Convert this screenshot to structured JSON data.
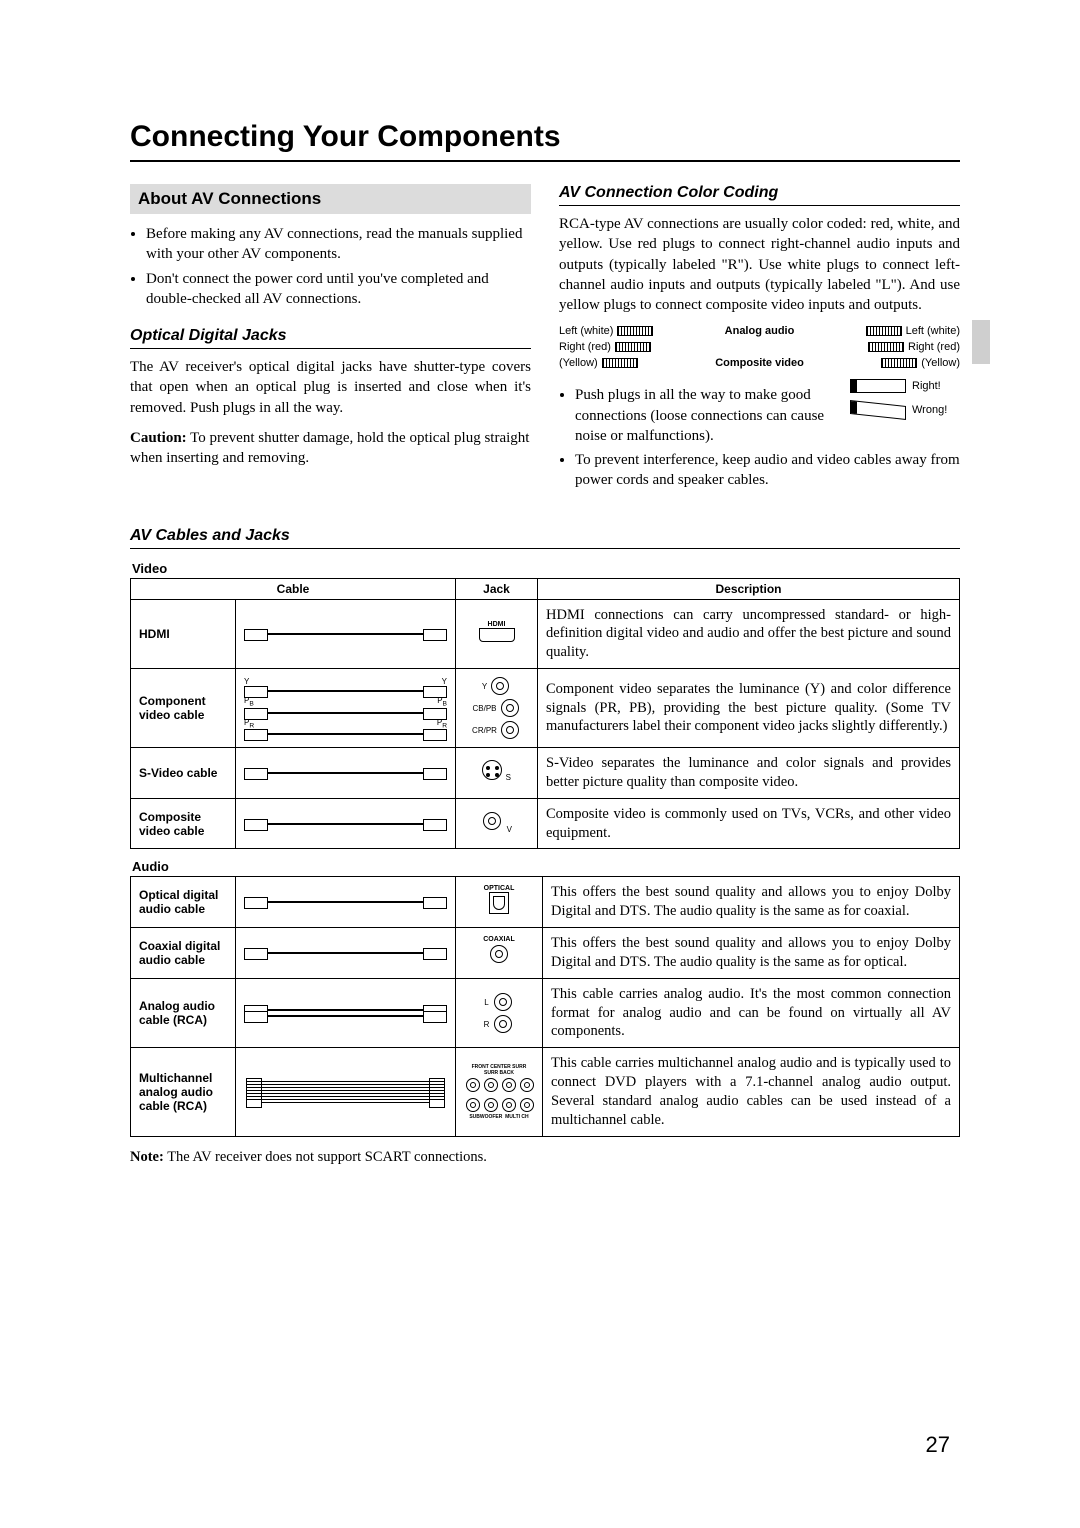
{
  "page": {
    "title": "Connecting Your Components",
    "number": "27"
  },
  "about": {
    "heading": "About AV Connections",
    "bullets": [
      "Before making any AV connections, read the manuals supplied with your other AV components.",
      "Don't connect the power cord until you've completed and double-checked all AV connections."
    ]
  },
  "optical": {
    "heading": "Optical Digital Jacks",
    "body": "The AV receiver's optical digital jacks have shutter-type covers that open when an optical plug is inserted and close when it's removed. Push plugs in all the way.",
    "caution_label": "Caution:",
    "caution_body": " To prevent shutter damage, hold the optical plug straight when inserting and removing."
  },
  "colorcoding": {
    "heading": "AV Connection Color Coding",
    "body": "RCA-type AV connections are usually color coded: red, white, and yellow. Use red plugs to connect right-channel audio inputs and outputs (typically labeled \"R\"). Use white plugs to connect left-channel audio inputs and outputs (typically labeled \"L\"). And use yellow plugs to connect composite video inputs and outputs.",
    "diag": {
      "analog_label": "Analog audio",
      "composite_label": "Composite video",
      "left_white": "Left (white)",
      "right_red": "Right (red)",
      "yellow": "(Yellow)"
    },
    "bullets": [
      "Push plugs in all the way to make good connections (loose connections can cause noise or malfunctions).",
      "To prevent interference, keep audio and video cables away from power cords and speaker cables."
    ],
    "right_label": "Right!",
    "wrong_label": "Wrong!"
  },
  "cables": {
    "heading": "AV Cables and Jacks",
    "video_label": "Video",
    "audio_label": "Audio",
    "columns": {
      "cable": "Cable",
      "jack": "Jack",
      "desc": "Description"
    },
    "video_rows": [
      {
        "name": "HDMI",
        "jack_label": "HDMI",
        "desc": "HDMI connections can carry uncompressed standard- or high-definition digital video and audio and offer the best picture and sound quality."
      },
      {
        "name": "Component video cable",
        "jack_label": "Y / CB/PB / CR/PR",
        "desc": "Component video separates the luminance (Y) and color difference signals (PR, PB), providing the best picture quality. (Some TV manufacturers label their component video jacks slightly differently.)"
      },
      {
        "name": "S-Video cable",
        "jack_label": "S",
        "desc": "S-Video separates the luminance and color signals and provides better picture quality than composite video."
      },
      {
        "name": "Composite video cable",
        "jack_label": "V",
        "desc": "Composite video is commonly used on TVs, VCRs, and other video equipment."
      }
    ],
    "audio_rows": [
      {
        "name": "Optical digital audio cable",
        "jack_label": "OPTICAL",
        "desc": "This offers the best sound quality and allows you to enjoy Dolby Digital and DTS. The audio quality is the same as for coaxial."
      },
      {
        "name": "Coaxial digital audio cable",
        "jack_label": "COAXIAL",
        "desc": "This offers the best sound quality and allows you to enjoy Dolby Digital and DTS. The audio quality is the same as for optical."
      },
      {
        "name": "Analog audio cable (RCA)",
        "jack_label": "L / R",
        "desc": "This cable carries analog audio. It's the most common connection format for analog audio and can be found on virtually all AV components."
      },
      {
        "name": "Multichannel analog audio cable (RCA)",
        "jack_label": "FRONT CENTER SURR SURR BACK SUBWOOFER MULTI CH",
        "desc": "This cable carries multichannel analog audio and is typically used to connect DVD players with a 7.1-channel analog audio output. Several standard analog audio cables can be used instead of a multichannel cable."
      }
    ],
    "note_label": "Note:",
    "note_body": " The AV receiver does not support SCART connections."
  },
  "colors": {
    "page_bg": "#ffffff",
    "text": "#000000",
    "section_bg": "#dcdcdc",
    "side_tab": "#cfcfcf",
    "border": "#000000"
  }
}
